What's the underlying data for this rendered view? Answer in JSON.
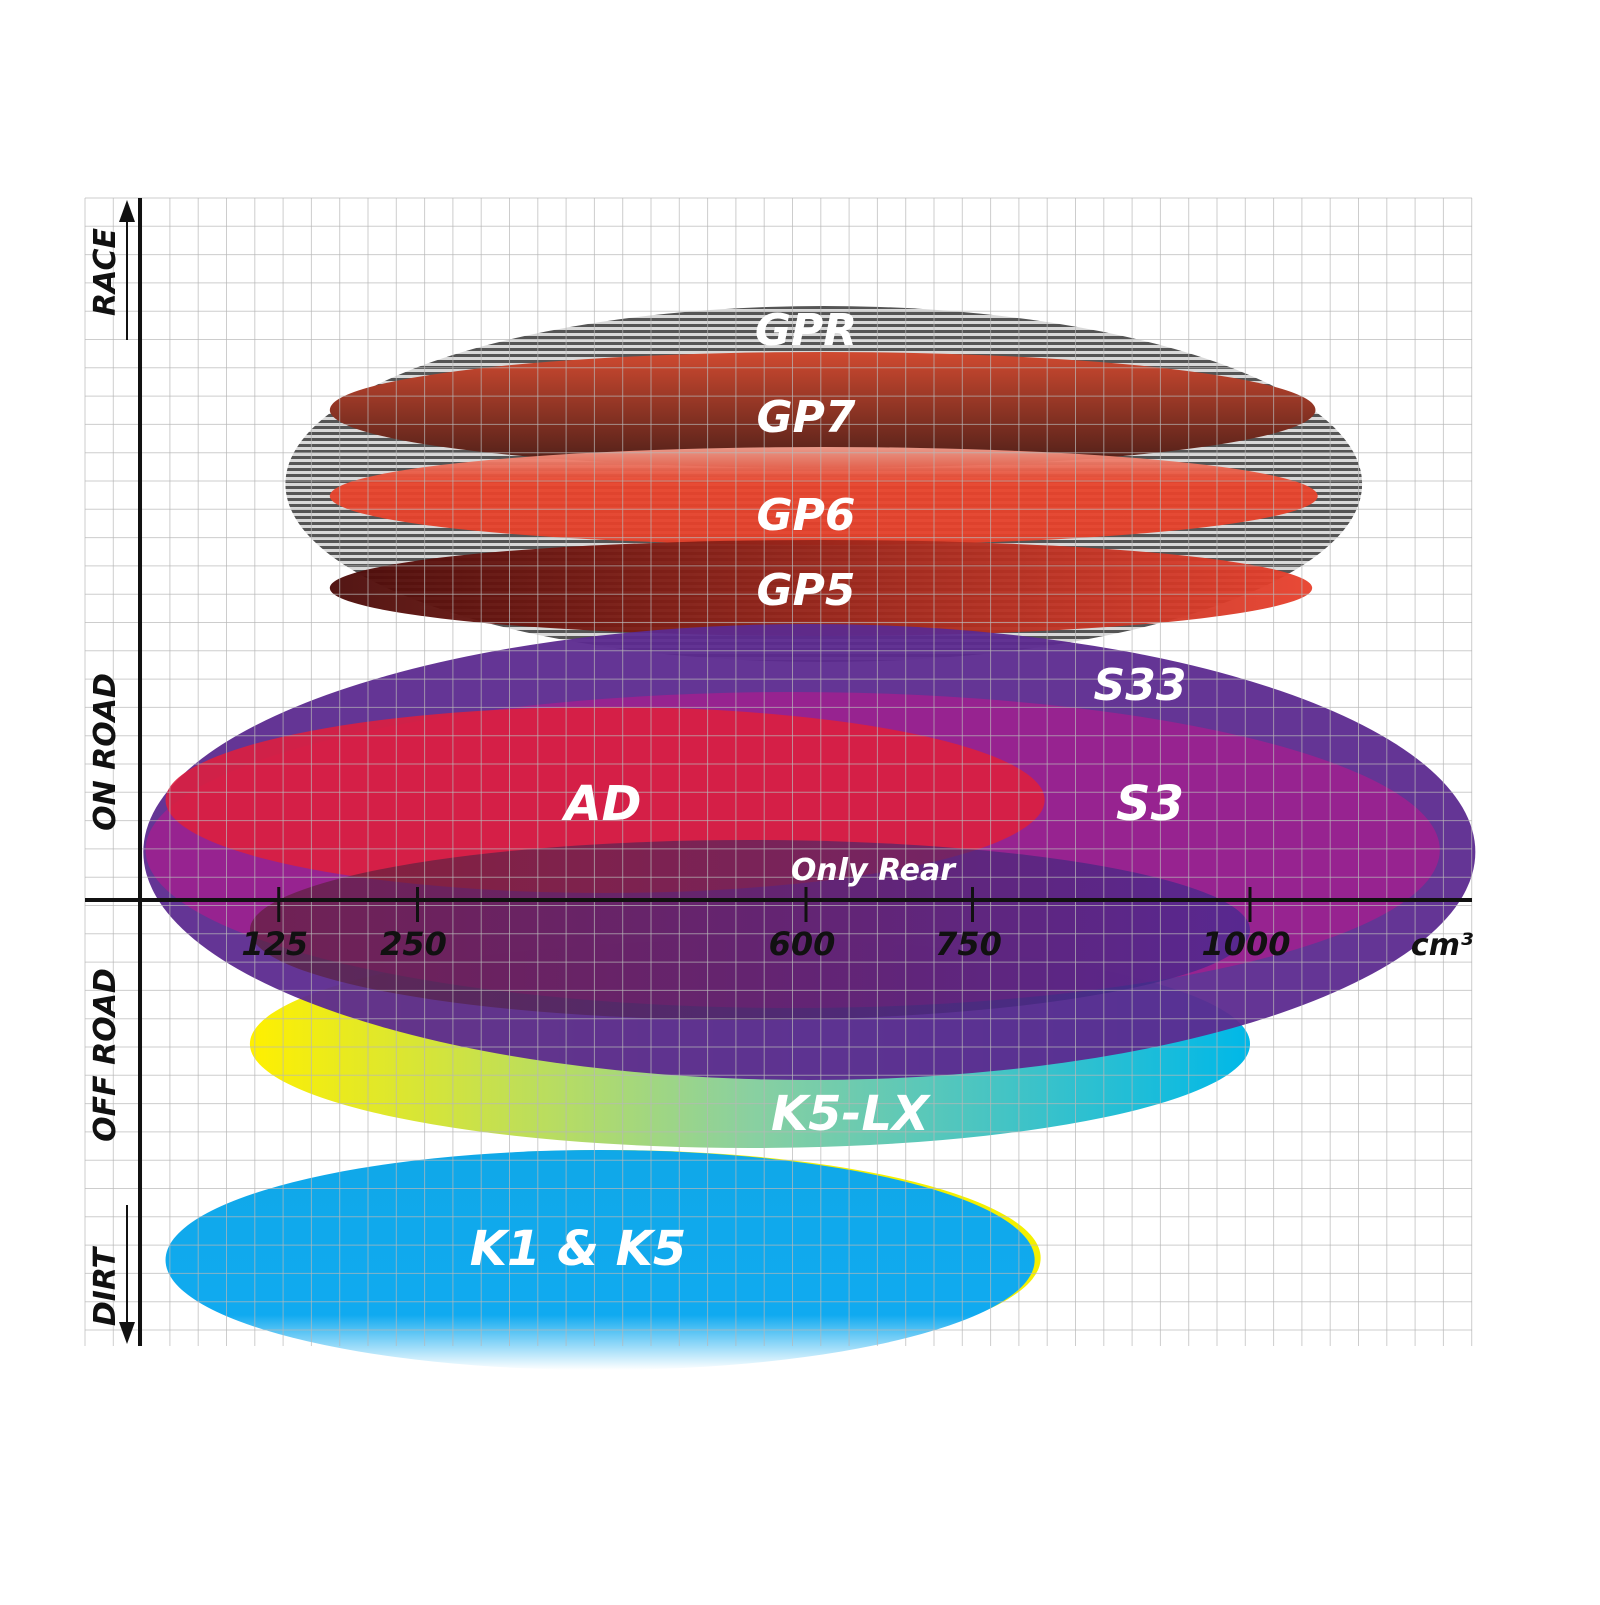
{
  "chart_data": {
    "type": "range-ellipse",
    "xlabel_unit": "cm³",
    "x_ticks": [
      125,
      250,
      600,
      750,
      1000
    ],
    "y_categories": [
      "RACE",
      "ON ROAD",
      "OFF ROAD",
      "DIRT"
    ],
    "grid": true,
    "series": [
      {
        "name": "GPR",
        "x_range": [
          131,
          1101
        ],
        "category": "RACE",
        "color": "#9a9a9a"
      },
      {
        "name": "GP7",
        "x_range": [
          171,
          1059
        ],
        "category": "RACE",
        "color": "#8a3424"
      },
      {
        "name": "GP6",
        "x_range": [
          171,
          1061
        ],
        "category": "RACE",
        "color": "#e8432f"
      },
      {
        "name": "GP5",
        "x_range": [
          171,
          1056
        ],
        "category": "RACE",
        "color": "#a01a10"
      },
      {
        "name": "S33",
        "x_range": [
          3,
          1203
        ],
        "category": "ON ROAD",
        "color": "#5c2a8f"
      },
      {
        "name": "S3",
        "x_range": [
          5,
          1171
        ],
        "category": "ON ROAD",
        "color": "#a0208f"
      },
      {
        "name": "AD",
        "x_range": [
          23,
          815
        ],
        "category": "ON ROAD",
        "color": "#dc1f3f"
      },
      {
        "name": "Only Rear",
        "x_range": [
          99,
          1000
        ],
        "category": "ON ROAD / OFF ROAD",
        "color": "#6a2a6a"
      },
      {
        "name": "K5-LX",
        "x_range": [
          99,
          1000
        ],
        "category": "OFF ROAD",
        "color": "#18b6d8"
      },
      {
        "name": "K1 & K5",
        "x_range": [
          23,
          806
        ],
        "category": "DIRT",
        "color": "#10a8e8"
      }
    ]
  }
}
